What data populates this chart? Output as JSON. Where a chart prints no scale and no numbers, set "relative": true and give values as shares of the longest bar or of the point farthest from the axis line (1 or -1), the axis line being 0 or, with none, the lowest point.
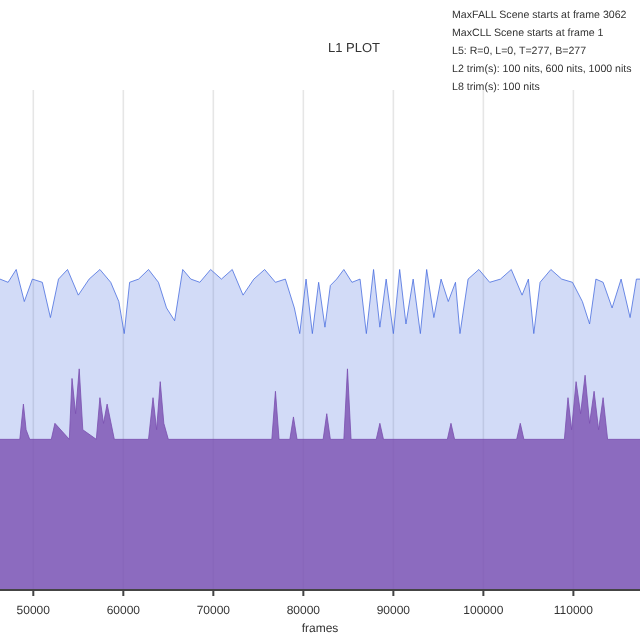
{
  "chart_data": {
    "type": "area",
    "title": "L1 PLOT",
    "xlabel": "frames",
    "relative": true,
    "grid": "x",
    "tick_labels": "x",
    "annotations": [
      "MaxFALL Scene starts at frame 3062",
      "MaxCLL Scene starts at frame 1",
      "L5: R=0, L=0, T=277, B=277",
      "L2 trim(s): 100 nits, 600 nits, 1000 nits",
      "L8 trim(s): 100 nits"
    ],
    "xlim": [
      46300,
      117400
    ],
    "xticks": [
      50000,
      60000,
      70000,
      80000,
      90000,
      100000,
      110000
    ],
    "series": [
      {
        "color": "#4a6ee0",
        "x": [
          46300,
          47200,
          48100,
          49000,
          49900,
          51000,
          51900,
          52800,
          53800,
          55000,
          56200,
          57400,
          58600,
          59500,
          60100,
          60700,
          61700,
          62800,
          63900,
          64800,
          65700,
          66600,
          67500,
          68500,
          69700,
          70900,
          72100,
          73300,
          74500,
          75700,
          76900,
          78000,
          79000,
          79600,
          80300,
          81000,
          81700,
          82400,
          83000,
          83700,
          84500,
          85400,
          86300,
          87000,
          87800,
          88500,
          89200,
          90000,
          90700,
          91400,
          92200,
          93000,
          93700,
          94500,
          95300,
          96100,
          96900,
          97400,
          98300,
          99500,
          100700,
          101900,
          103100,
          104300,
          105000,
          105600,
          106300,
          107500,
          108700,
          109900,
          111000,
          111800,
          112500,
          113300,
          114300,
          115300,
          116300,
          117000,
          117400
        ],
        "values": [
          0.97,
          0.96,
          1,
          0.9,
          0.97,
          0.96,
          0.85,
          0.97,
          1,
          0.92,
          0.97,
          1,
          0.96,
          0.9,
          0.8,
          0.96,
          0.97,
          1,
          0.96,
          0.88,
          0.84,
          1,
          0.97,
          0.96,
          1,
          0.97,
          1,
          0.92,
          0.97,
          1,
          0.96,
          0.97,
          0.88,
          0.8,
          0.97,
          0.8,
          0.96,
          0.82,
          0.95,
          0.97,
          1,
          0.96,
          0.97,
          0.8,
          1,
          0.82,
          0.97,
          0.8,
          1,
          0.83,
          0.97,
          0.8,
          1,
          0.85,
          0.97,
          0.9,
          0.96,
          0.8,
          0.97,
          1,
          0.96,
          0.97,
          1,
          0.92,
          0.97,
          0.8,
          0.96,
          1,
          0.97,
          0.96,
          0.9,
          0.83,
          0.97,
          0.96,
          0.88,
          0.97,
          0.85,
          0.97,
          0.97
        ]
      },
      {
        "color": "#7a4fb0",
        "x": [
          46300,
          48500,
          48900,
          49200,
          49600,
          52000,
          52400,
          54000,
          54300,
          54700,
          55100,
          55500,
          57000,
          57400,
          57800,
          58200,
          59000,
          62800,
          63300,
          63700,
          64100,
          64500,
          65000,
          76500,
          76900,
          77300,
          78500,
          78900,
          79300,
          82200,
          82600,
          83000,
          84500,
          84900,
          85300,
          88100,
          88500,
          88900,
          96000,
          96400,
          96800,
          103700,
          104100,
          104500,
          109000,
          109400,
          109800,
          110300,
          110800,
          111300,
          111800,
          112300,
          112800,
          113300,
          113800,
          117400
        ],
        "values": [
          0.47,
          0.47,
          0.58,
          0.5,
          0.47,
          0.47,
          0.52,
          0.47,
          0.66,
          0.55,
          0.69,
          0.5,
          0.47,
          0.6,
          0.52,
          0.58,
          0.47,
          0.47,
          0.6,
          0.5,
          0.65,
          0.52,
          0.47,
          0.47,
          0.62,
          0.47,
          0.47,
          0.54,
          0.47,
          0.47,
          0.55,
          0.47,
          0.47,
          0.69,
          0.47,
          0.47,
          0.52,
          0.47,
          0.47,
          0.52,
          0.47,
          0.47,
          0.52,
          0.47,
          0.47,
          0.6,
          0.5,
          0.65,
          0.55,
          0.67,
          0.52,
          0.62,
          0.5,
          0.6,
          0.47,
          0.47
        ]
      }
    ]
  }
}
